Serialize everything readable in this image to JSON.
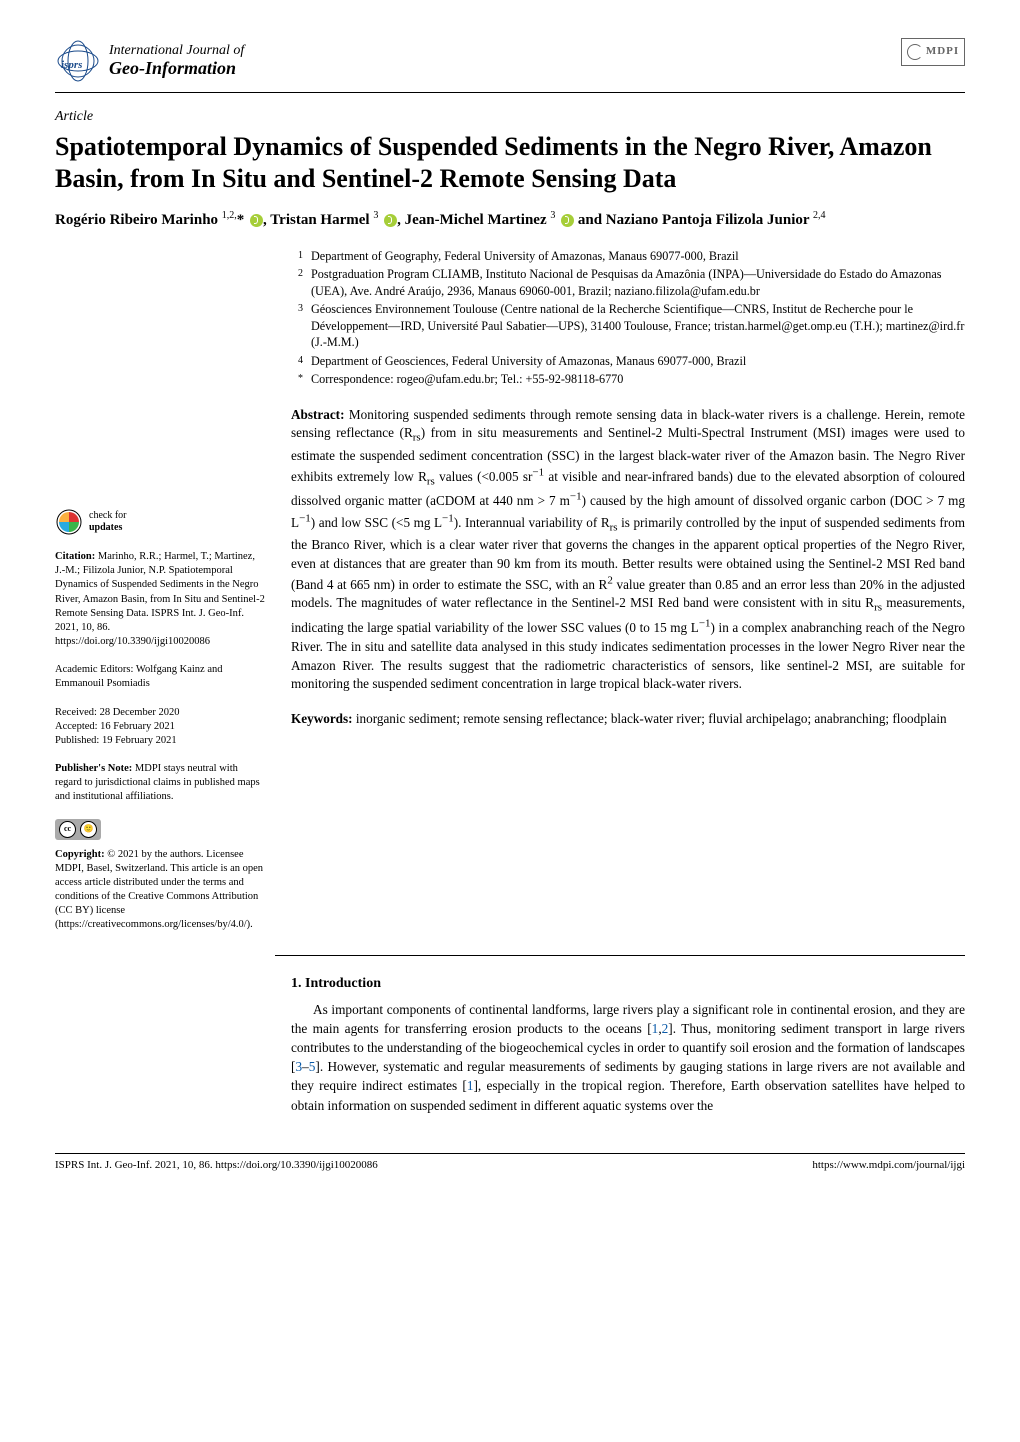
{
  "header": {
    "journal_line1": "International Journal of",
    "journal_line2": "Geo-Information",
    "publisher": "MDPI"
  },
  "article": {
    "type": "Article",
    "title": "Spatiotemporal Dynamics of Suspended Sediments in the Negro River, Amazon Basin, from In Situ and Sentinel-2 Remote Sensing Data",
    "authors_html": "Rogério Ribeiro Marinho <sup>1,2,</sup>* <span class='orcid' data-name='orcid-icon' data-interactable='false'></span>, Tristan Harmel <sup>3</sup> <span class='orcid' data-name='orcid-icon' data-interactable='false'></span>, Jean-Michel Martinez <sup>3</sup> <span class='orcid' data-name='orcid-icon' data-interactable='false'></span> and Naziano Pantoja Filizola Junior <sup>2,4</sup>"
  },
  "affiliations": [
    {
      "n": "1",
      "text": "Department of Geography, Federal University of Amazonas, Manaus 69077-000, Brazil"
    },
    {
      "n": "2",
      "text": "Postgraduation Program CLIAMB, Instituto Nacional de Pesquisas da Amazônia (INPA)—Universidade do Estado do Amazonas (UEA), Ave. André Araújo, 2936, Manaus 69060-001, Brazil; naziano.filizola@ufam.edu.br"
    },
    {
      "n": "3",
      "text": "Géosciences Environnement Toulouse (Centre national de la Recherche Scientifique—CNRS, Institut de Recherche pour le Développement—IRD, Université Paul Sabatier—UPS), 31400 Toulouse, France; tristan.harmel@get.omp.eu (T.H.); martinez@ird.fr (J.-M.M.)"
    },
    {
      "n": "4",
      "text": "Department of Geosciences, Federal University of Amazonas, Manaus 69077-000, Brazil"
    },
    {
      "n": "*",
      "text": "Correspondence: rogeo@ufam.edu.br; Tel.: +55-92-98118-6770"
    }
  ],
  "abstract": {
    "label": "Abstract:",
    "text": " Monitoring suspended sediments through remote sensing data in black-water rivers is a challenge. Herein, remote sensing reflectance (Rrs) from in situ measurements and Sentinel-2 Multi-Spectral Instrument (MSI) images were used to estimate the suspended sediment concentration (SSC) in the largest black-water river of the Amazon basin. The Negro River exhibits extremely low Rrs values (<0.005 sr−1 at visible and near-infrared bands) due to the elevated absorption of coloured dissolved organic matter (aCDOM at 440 nm > 7 m−1) caused by the high amount of dissolved organic carbon (DOC > 7 mg L−1) and low SSC (<5 mg L−1). Interannual variability of Rrs is primarily controlled by the input of suspended sediments from the Branco River, which is a clear water river that governs the changes in the apparent optical properties of the Negro River, even at distances that are greater than 90 km from its mouth. Better results were obtained using the Sentinel-2 MSI Red band (Band 4 at 665 nm) in order to estimate the SSC, with an R2 value greater than 0.85 and an error less than 20% in the adjusted models. The magnitudes of water reflectance in the Sentinel-2 MSI Red band were consistent with in situ Rrs measurements, indicating the large spatial variability of the lower SSC values (0 to 15 mg L−1) in a complex anabranching reach of the Negro River. The in situ and satellite data analysed in this study indicates sedimentation processes in the lower Negro River near the Amazon River. The results suggest that the radiometric characteristics of sensors, like sentinel-2 MSI, are suitable for monitoring the suspended sediment concentration in large tropical black-water rivers."
  },
  "keywords": {
    "label": "Keywords:",
    "text": " inorganic sediment; remote sensing reflectance; black-water river; fluvial archipelago; anabranching; floodplain"
  },
  "sidebar": {
    "check_l1": "check for",
    "check_l2": "updates",
    "citation_label": "Citation:",
    "citation": " Marinho, R.R.; Harmel, T.; Martinez, J.-M.; Filizola Junior, N.P. Spatiotemporal Dynamics of Suspended Sediments in the Negro River, Amazon Basin, from In Situ and Sentinel-2 Remote Sensing Data. ISPRS Int. J. Geo-Inf. 2021, 10, 86. https://doi.org/10.3390/ijgi10020086",
    "editors_label": "Academic Editors:",
    "editors": " Wolfgang Kainz and Emmanouil Psomiadis",
    "received": "Received: 28 December 2020",
    "accepted": "Accepted: 16 February 2021",
    "published": "Published: 19 February 2021",
    "note_label": "Publisher's Note:",
    "note": " MDPI stays neutral with regard to jurisdictional claims in published maps and institutional affiliations.",
    "copyright_label": "Copyright:",
    "copyright": " © 2021 by the authors. Licensee MDPI, Basel, Switzerland. This article is an open access article distributed under the terms and conditions of the Creative Commons Attribution (CC BY) license (https://creativecommons.org/licenses/by/4.0/)."
  },
  "section1": {
    "heading": "1. Introduction",
    "para": "As important components of continental landforms, large rivers play a significant role in continental erosion, and they are the main agents for transferring erosion products to the oceans [1,2]. Thus, monitoring sediment transport in large rivers contributes to the understanding of the biogeochemical cycles in order to quantify soil erosion and the formation of landscapes [3–5]. However, systematic and regular measurements of sediments by gauging stations in large rivers are not available and they require indirect estimates [1], especially in the tropical region. Therefore, Earth observation satellites have helped to obtain information on suspended sediment in different aquatic systems over the"
  },
  "footer": {
    "left": "ISPRS Int. J. Geo-Inf. 2021, 10, 86. https://doi.org/10.3390/ijgi10020086",
    "right": "https://www.mdpi.com/journal/ijgi"
  },
  "colors": {
    "orcid_green": "#a6ce39",
    "ref_link": "#0a5aa8",
    "rule": "#000000",
    "cc_gray": "#aaaaaa",
    "logo_gray": "#666666"
  }
}
